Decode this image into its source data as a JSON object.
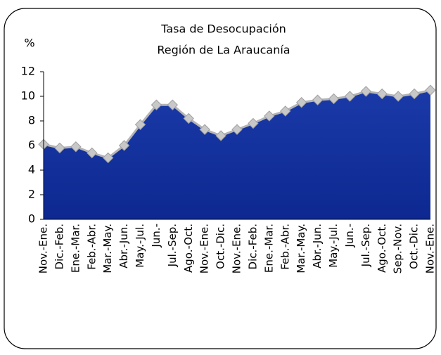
{
  "chart_data": {
    "type": "area",
    "title": [
      "Tasa de Desocupación",
      "Región de La Araucanía"
    ],
    "ylabel": "%",
    "categories": [
      "Nov.-Ene.",
      "Dic.-Feb.",
      "Ene.-Mar.",
      "Feb.-Abr.",
      "Mar.-May.",
      "Abr.-Jun.",
      "May.-Jul.",
      "Jun.-",
      "Jul.-Sep.",
      "Ago.-Oct.",
      "Nov.-Ene.",
      "Oct.-Dic.",
      "Nov.-Ene.",
      "Dic.-Feb.",
      "Ene.-Mar.",
      "Feb.-Abr.",
      "Mar.-May.",
      "Abr.-Jun.",
      "May.-Jul.",
      "Jun.-",
      "Jul.-Sep.",
      "Ago.-Oct.",
      "Sep.-Nov.",
      "Oct.-Dic.",
      "Nov.-Ene."
    ],
    "values": [
      6.1,
      5.8,
      5.9,
      5.4,
      5.0,
      6.0,
      7.7,
      9.3,
      9.3,
      8.2,
      7.3,
      6.8,
      7.3,
      7.8,
      8.4,
      8.8,
      9.5,
      9.7,
      9.8,
      10.0,
      10.4,
      10.2,
      10.0,
      10.2,
      10.5
    ],
    "color": "#1a3aa8",
    "line_color": "#b4b4b4",
    "ylim": [
      0,
      12
    ],
    "yticks": [
      0,
      2,
      4,
      6,
      8,
      10,
      12
    ]
  }
}
